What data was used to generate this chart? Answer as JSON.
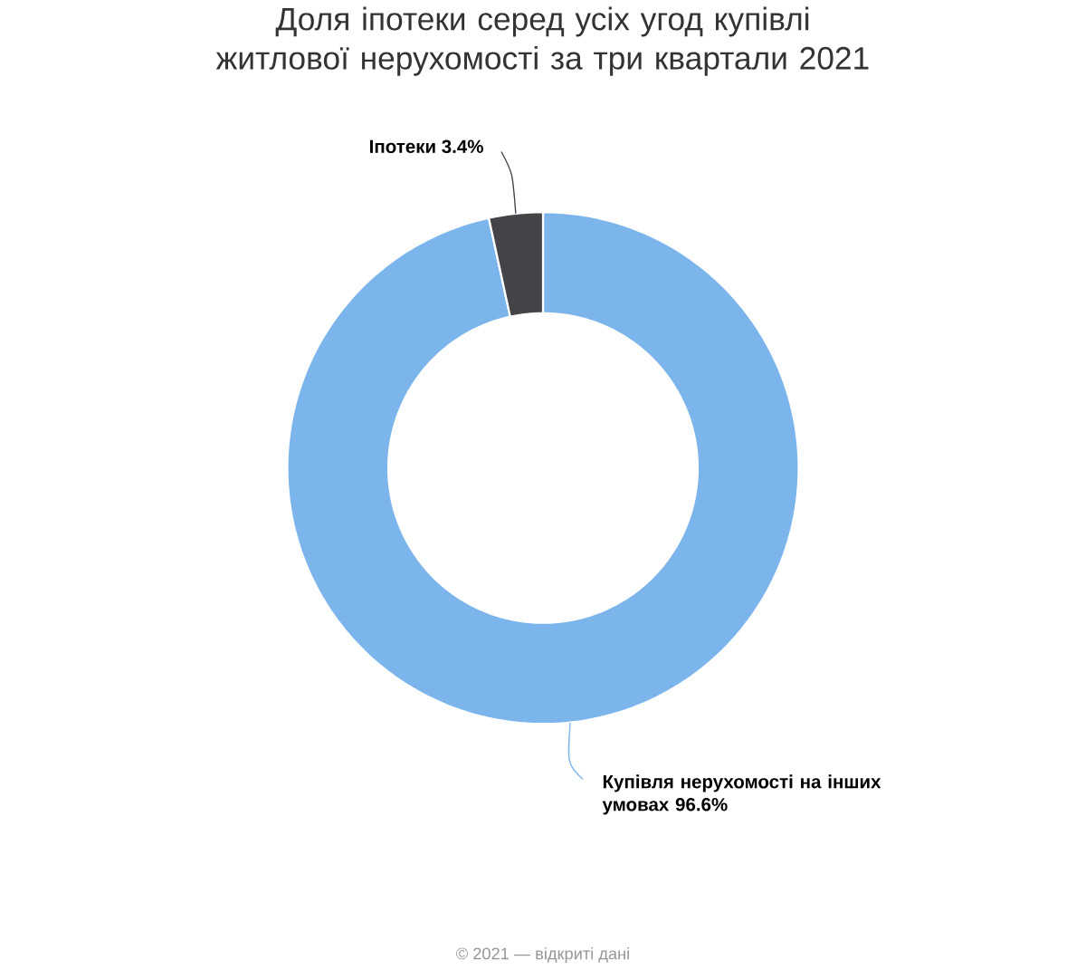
{
  "chart_data": {
    "type": "donut",
    "title": "Доля іпотеки серед усіх угод купівлі житлової нерухомості за три квартали 2021",
    "categories": [
      "Купівля нерухомості на інших умовах",
      "Іпотеки"
    ],
    "values": [
      96.6,
      3.4
    ],
    "value_labels": [
      "96.6%",
      "3.4%"
    ],
    "colors": [
      "#7cb5ec",
      "#434348"
    ],
    "annotations": [
      "© 2021 — відкриті дані"
    ]
  }
}
